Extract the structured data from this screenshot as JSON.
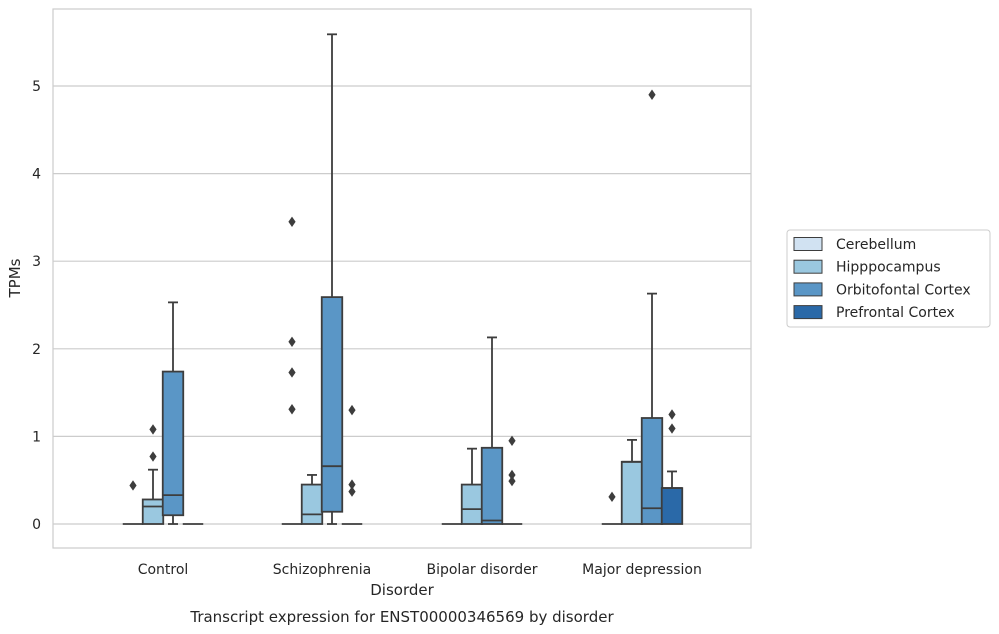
{
  "chart_data": {
    "type": "box",
    "title": "Transcript expression for ENST00000346569 by disorder",
    "xlabel": "Disorder",
    "ylabel": "TPMs",
    "ylim": [
      -0.27,
      5.88
    ],
    "yticks": [
      0,
      1,
      2,
      3,
      4,
      5
    ],
    "grid": "horizontal",
    "legend_position": "right",
    "categories": [
      "Control",
      "Schizophrenia",
      "Bipolar disorder",
      "Major depression"
    ],
    "series": [
      {
        "name": "Cerebellum",
        "color": "#d1e2f2",
        "boxes": [
          {
            "q1": 0,
            "median": 0,
            "q3": 0,
            "whisker_low": 0,
            "whisker_high": 0,
            "outliers": [
              0.44
            ]
          },
          {
            "q1": 0,
            "median": 0,
            "q3": 0,
            "whisker_low": 0,
            "whisker_high": 0,
            "outliers": [
              3.45,
              2.08,
              1.73,
              1.31
            ]
          },
          {
            "q1": 0,
            "median": 0,
            "q3": 0,
            "whisker_low": 0,
            "whisker_high": 0,
            "outliers": []
          },
          {
            "q1": 0,
            "median": 0,
            "q3": 0,
            "whisker_low": 0,
            "whisker_high": 0,
            "outliers": [
              0.31
            ]
          }
        ]
      },
      {
        "name": "Hipppocampus",
        "color": "#9ac8e0",
        "boxes": [
          {
            "q1": 0,
            "median": 0.2,
            "q3": 0.28,
            "whisker_low": 0,
            "whisker_high": 0.62,
            "outliers": [
              1.08,
              0.77
            ]
          },
          {
            "q1": 0,
            "median": 0.11,
            "q3": 0.45,
            "whisker_low": 0,
            "whisker_high": 0.56,
            "outliers": []
          },
          {
            "q1": 0,
            "median": 0.17,
            "q3": 0.45,
            "whisker_low": 0,
            "whisker_high": 0.86,
            "outliers": []
          },
          {
            "q1": 0,
            "median": 0.71,
            "q3": 0.71,
            "whisker_low": 0,
            "whisker_high": 0.96,
            "outliers": []
          }
        ]
      },
      {
        "name": "Orbitofontal Cortex",
        "color": "#5a96c6",
        "boxes": [
          {
            "q1": 0.1,
            "median": 0.33,
            "q3": 1.74,
            "whisker_low": 0,
            "whisker_high": 2.53,
            "outliers": []
          },
          {
            "q1": 0.14,
            "median": 0.66,
            "q3": 2.59,
            "whisker_low": 0,
            "whisker_high": 5.59,
            "outliers": []
          },
          {
            "q1": 0,
            "median": 0.04,
            "q3": 0.87,
            "whisker_low": 0,
            "whisker_high": 2.13,
            "outliers": []
          },
          {
            "q1": 0,
            "median": 0.18,
            "q3": 1.21,
            "whisker_low": 0,
            "whisker_high": 2.63,
            "outliers": [
              4.9
            ]
          }
        ]
      },
      {
        "name": "Prefrontal Cortex",
        "color": "#2a69a8",
        "boxes": [
          {
            "q1": 0,
            "median": 0,
            "q3": 0,
            "whisker_low": 0,
            "whisker_high": 0,
            "outliers": []
          },
          {
            "q1": 0,
            "median": 0,
            "q3": 0,
            "whisker_low": 0,
            "whisker_high": 0,
            "outliers": [
              1.3,
              0.45,
              0.37
            ]
          },
          {
            "q1": 0,
            "median": 0,
            "q3": 0,
            "whisker_low": 0,
            "whisker_high": 0,
            "outliers": [
              0.95,
              0.56,
              0.49
            ]
          },
          {
            "q1": 0,
            "median": 0.41,
            "q3": 0.41,
            "whisker_low": 0,
            "whisker_high": 0.6,
            "outliers": [
              1.25,
              1.09
            ]
          }
        ]
      }
    ]
  }
}
